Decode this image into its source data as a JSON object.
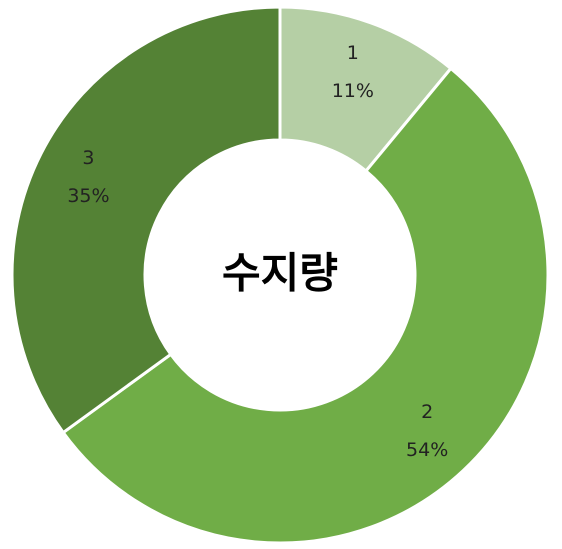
{
  "chart_data": {
    "type": "donut",
    "title": "수지량",
    "categories": [
      "1",
      "2",
      "3"
    ],
    "values": [
      11,
      54,
      35
    ],
    "value_labels": [
      "11%",
      "54%",
      "35%"
    ],
    "colors": [
      "#b5cfa5",
      "#70ad47",
      "#548235"
    ]
  }
}
